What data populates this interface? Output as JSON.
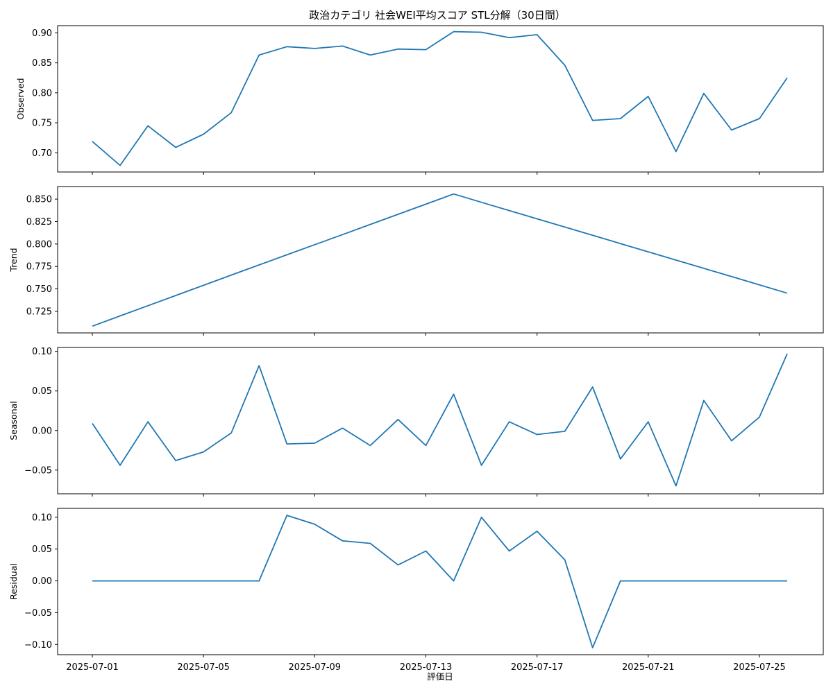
{
  "chart_data": {
    "type": "line",
    "title": "政治カテゴリ 社会WEI平均スコア STL分解（30日間）",
    "xlabel": "評価日",
    "line_color": "#1f77b4",
    "x": [
      "2025-07-01",
      "2025-07-02",
      "2025-07-03",
      "2025-07-04",
      "2025-07-05",
      "2025-07-06",
      "2025-07-07",
      "2025-07-08",
      "2025-07-09",
      "2025-07-10",
      "2025-07-11",
      "2025-07-12",
      "2025-07-13",
      "2025-07-14",
      "2025-07-15",
      "2025-07-16",
      "2025-07-17",
      "2025-07-18",
      "2025-07-19",
      "2025-07-20",
      "2025-07-21",
      "2025-07-22",
      "2025-07-23",
      "2025-07-24",
      "2025-07-25",
      "2025-07-26"
    ],
    "x_ticks": [
      "2025-07-01",
      "2025-07-05",
      "2025-07-09",
      "2025-07-13",
      "2025-07-17",
      "2025-07-21",
      "2025-07-25"
    ],
    "panels": [
      {
        "ylabel": "Observed",
        "ylim": [
          0.668,
          0.912
        ],
        "yticks": [
          "0.70",
          "0.75",
          "0.80",
          "0.85",
          "0.90"
        ],
        "values": [
          0.719,
          0.679,
          0.745,
          0.709,
          0.731,
          0.767,
          0.863,
          0.877,
          0.874,
          0.878,
          0.863,
          0.873,
          0.872,
          0.902,
          0.901,
          0.892,
          0.897,
          0.846,
          0.754,
          0.757,
          0.794,
          0.702,
          0.799,
          0.738,
          0.757,
          0.825
        ]
      },
      {
        "ylabel": "Trend",
        "ylim": [
          0.701,
          0.864
        ],
        "yticks": [
          "0.725",
          "0.750",
          "0.775",
          "0.800",
          "0.825",
          "0.850"
        ],
        "values": [
          0.7085,
          0.7199,
          0.7313,
          0.7426,
          0.754,
          0.7654,
          0.7767,
          0.788,
          0.7993,
          0.8105,
          0.8218,
          0.8331,
          0.8444,
          0.8557,
          0.8465,
          0.8373,
          0.8281,
          0.8189,
          0.8097,
          0.8005,
          0.7913,
          0.7821,
          0.7729,
          0.7637,
          0.7545,
          0.7453
        ]
      },
      {
        "ylabel": "Seasonal",
        "ylim": [
          -0.08,
          0.105
        ],
        "yticks": [
          "−0.05",
          "0.00",
          "0.05",
          "0.10"
        ],
        "values": [
          0.009,
          -0.044,
          0.011,
          -0.038,
          -0.027,
          -0.003,
          0.082,
          -0.017,
          -0.016,
          0.003,
          -0.019,
          0.014,
          -0.019,
          0.046,
          -0.044,
          0.011,
          -0.005,
          -0.001,
          0.055,
          -0.036,
          0.011,
          -0.07,
          0.038,
          -0.013,
          0.017,
          0.097
        ]
      },
      {
        "ylabel": "Residual",
        "ylim": [
          -0.116,
          0.114
        ],
        "yticks": [
          "−0.10",
          "−0.05",
          "0.00",
          "0.05",
          "0.10"
        ],
        "values": [
          0.0,
          0.0,
          0.0,
          0.0,
          0.0,
          0.0,
          0.0,
          0.103,
          0.089,
          0.063,
          0.059,
          0.025,
          0.047,
          0.0,
          0.1,
          0.047,
          0.078,
          0.033,
          -0.105,
          0.0,
          0.0,
          0.0,
          0.0,
          0.0,
          0.0,
          0.0
        ]
      }
    ]
  }
}
